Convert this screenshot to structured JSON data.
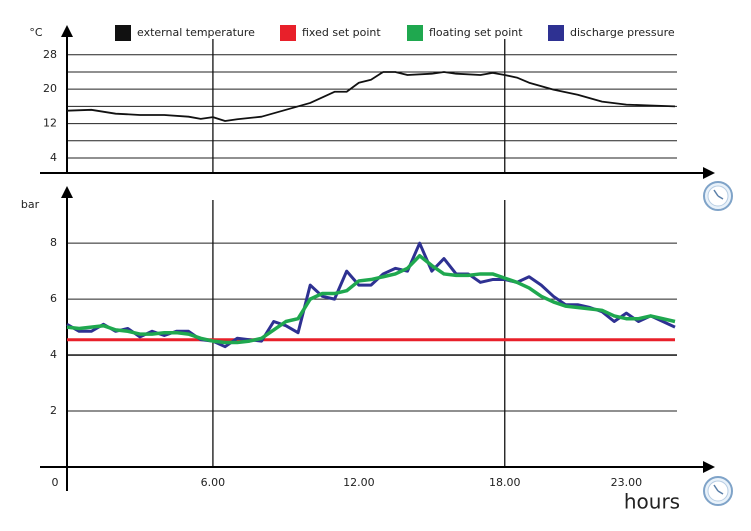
{
  "chart_data": [
    {
      "type": "line",
      "y_label": "°C",
      "xlim": [
        0,
        25
      ],
      "ylim": [
        0.5,
        34
      ],
      "yticks": [
        4,
        12,
        20,
        28
      ],
      "minor_yticks": [
        8,
        16,
        24
      ],
      "vlines": [
        6,
        18
      ],
      "series": [
        {
          "name": "external temperature",
          "color": "#111111",
          "x": [
            0,
            1,
            2,
            3,
            4,
            5,
            5.5,
            6,
            6.5,
            7,
            8,
            9,
            10,
            11,
            11.5,
            12,
            12.5,
            13,
            13.5,
            14,
            15,
            15.5,
            16,
            17,
            17.5,
            18,
            18.5,
            19,
            20,
            21,
            22,
            23,
            24,
            25
          ],
          "values": [
            15,
            15.2,
            14.3,
            14,
            14,
            13.6,
            13.1,
            13.5,
            12.6,
            13,
            13.6,
            15.2,
            16.8,
            19.4,
            19.4,
            21.5,
            22.2,
            24,
            24,
            23.3,
            23.6,
            24,
            23.6,
            23.3,
            23.8,
            23.3,
            22.7,
            21.5,
            19.9,
            18.7,
            17.1,
            16.4,
            16.2,
            16
          ]
        }
      ]
    },
    {
      "type": "line",
      "y_label": "bar",
      "x_label": "hours",
      "xlim": [
        0,
        25
      ],
      "ylim": [
        0,
        9.9
      ],
      "yticks": [
        2,
        4,
        6,
        8
      ],
      "vlines": [
        6,
        18
      ],
      "xticks": [
        0,
        {
          "value": 6,
          "label": "6.00"
        },
        {
          "value": 12,
          "label": "12.00"
        },
        {
          "value": 18,
          "label": "18.00"
        },
        {
          "value": 23,
          "label": "23.00"
        }
      ],
      "series": [
        {
          "name": "fixed set point",
          "color": "#e8202a",
          "x": [
            0,
            25
          ],
          "values": [
            4.55,
            4.55
          ]
        },
        {
          "name": "discharge pressure",
          "color": "#2e3192",
          "x": [
            0,
            0.5,
            1,
            1.5,
            2,
            2.5,
            3,
            3.5,
            4,
            4.5,
            5,
            5.5,
            6,
            6.5,
            7,
            7.5,
            8,
            8.5,
            9,
            9.5,
            10,
            10.5,
            11,
            11.5,
            12,
            12.5,
            13,
            13.5,
            14,
            14.5,
            15,
            15.5,
            16,
            16.5,
            17,
            17.5,
            18,
            18.5,
            19,
            19.5,
            20,
            20.5,
            21,
            21.5,
            22,
            22.5,
            23,
            23.5,
            24,
            24.5,
            25
          ],
          "values": [
            5.1,
            4.85,
            4.85,
            5.1,
            4.85,
            4.95,
            4.65,
            4.85,
            4.7,
            4.85,
            4.85,
            4.55,
            4.5,
            4.3,
            4.6,
            4.55,
            4.5,
            5.2,
            5.05,
            4.8,
            6.5,
            6.1,
            6.0,
            7.0,
            6.5,
            6.5,
            6.9,
            7.1,
            7.0,
            8.0,
            7.0,
            7.45,
            6.9,
            6.9,
            6.6,
            6.7,
            6.7,
            6.6,
            6.8,
            6.5,
            6.1,
            5.8,
            5.8,
            5.7,
            5.55,
            5.2,
            5.5,
            5.2,
            5.4,
            5.2,
            5.0
          ]
        },
        {
          "name": "floating set point",
          "color": "#1fa84f",
          "x": [
            0,
            0.5,
            1,
            1.5,
            2,
            2.5,
            3,
            3.5,
            4,
            4.5,
            5,
            5.5,
            6,
            6.5,
            7,
            7.5,
            8,
            8.5,
            9,
            9.5,
            10,
            10.5,
            11,
            11.5,
            12,
            12.5,
            13,
            13.5,
            14,
            14.5,
            15,
            15.5,
            16,
            16.5,
            17,
            17.5,
            18,
            18.5,
            19,
            19.5,
            20,
            20.5,
            21,
            21.5,
            22,
            22.5,
            23,
            23.5,
            24,
            24.5,
            25
          ],
          "values": [
            5.0,
            4.95,
            5.0,
            5.05,
            4.9,
            4.85,
            4.75,
            4.75,
            4.8,
            4.8,
            4.75,
            4.6,
            4.5,
            4.45,
            4.45,
            4.5,
            4.6,
            4.9,
            5.2,
            5.3,
            6.0,
            6.2,
            6.2,
            6.3,
            6.65,
            6.7,
            6.8,
            6.9,
            7.1,
            7.55,
            7.2,
            6.9,
            6.85,
            6.85,
            6.9,
            6.9,
            6.75,
            6.6,
            6.4,
            6.1,
            5.9,
            5.75,
            5.7,
            5.65,
            5.6,
            5.4,
            5.3,
            5.3,
            5.4,
            5.3,
            5.2
          ]
        }
      ]
    }
  ]
}
